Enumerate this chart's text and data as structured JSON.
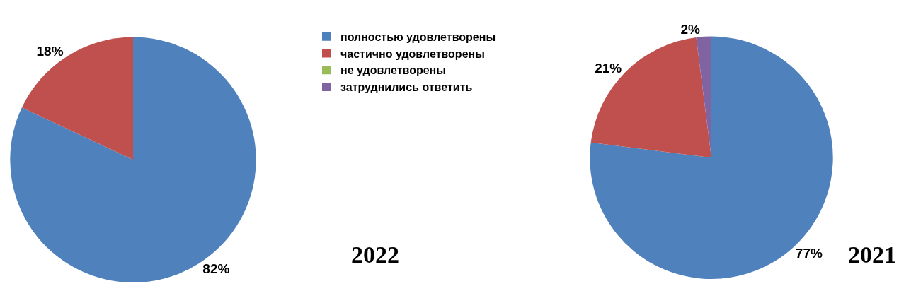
{
  "chart_data": {
    "type": "pie",
    "categories": [
      "полностью удовлетворены",
      "частично удовлетворены",
      "не удовлетворены",
      "затруднились ответить"
    ],
    "colors": [
      "#4f81bd",
      "#c0504d",
      "#9bbb59",
      "#8064a2"
    ],
    "legend": "top",
    "series": [
      {
        "name": "2022",
        "values": [
          82,
          18,
          0,
          0
        ],
        "value_labels": [
          "82%",
          "18%",
          null,
          null
        ]
      },
      {
        "name": "2021",
        "values": [
          77,
          21,
          0,
          2
        ],
        "value_labels": [
          "77%",
          "21%",
          null,
          "2%"
        ]
      }
    ]
  }
}
